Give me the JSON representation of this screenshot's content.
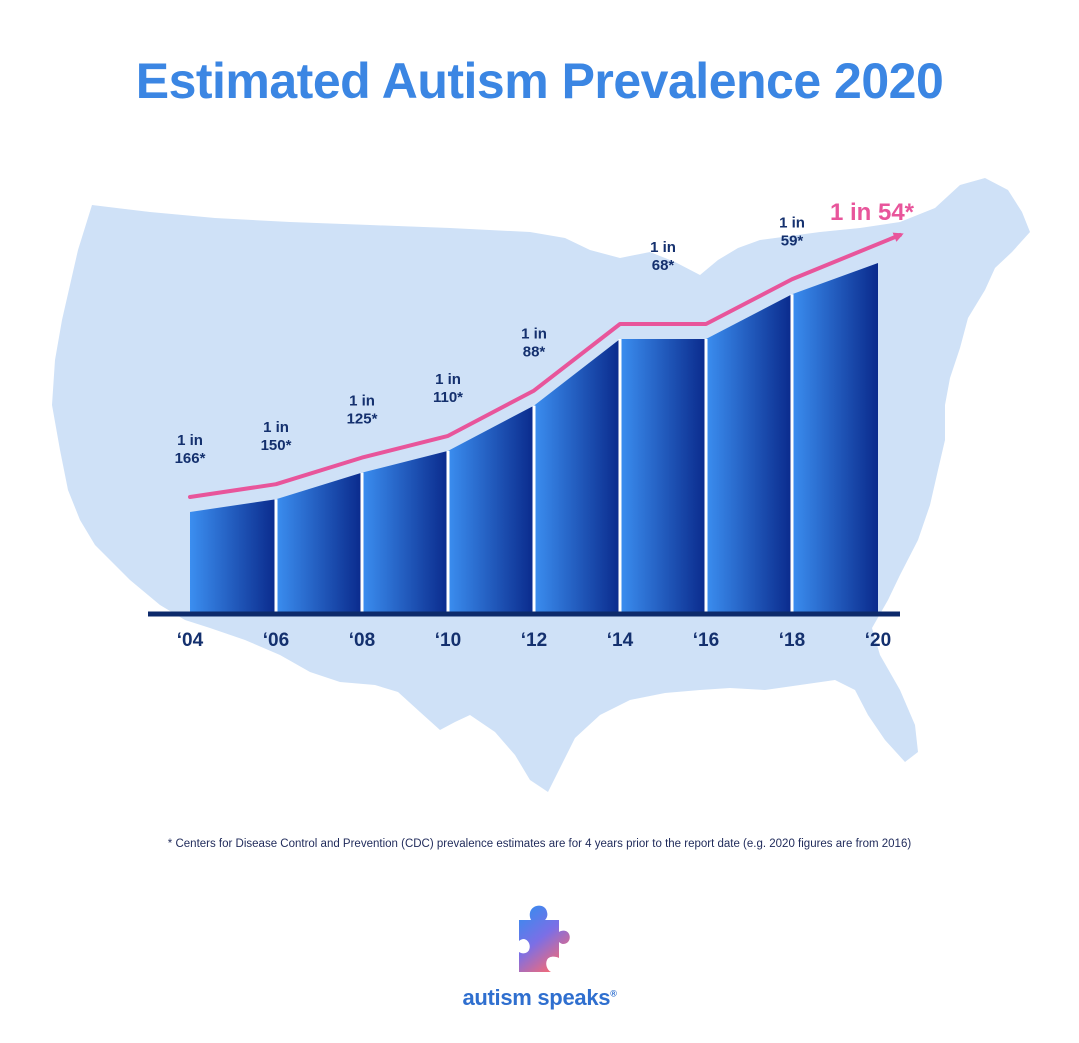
{
  "title": "Estimated Autism Prevalence 2020",
  "chart_data": {
    "type": "area",
    "categories": [
      "'04",
      "'06",
      "'08",
      "'10",
      "'12",
      "'14",
      "'16",
      "'18",
      "'20"
    ],
    "tick_labels": [
      "‘04",
      "‘06",
      "‘08",
      "‘10",
      "‘12",
      "‘14",
      "‘16",
      "‘18",
      "‘20"
    ],
    "values_one_in": [
      166,
      150,
      125,
      110,
      88,
      68,
      68,
      59,
      54
    ],
    "rate_labels": [
      [
        "1 in",
        "166*"
      ],
      [
        "1 in",
        "150*"
      ],
      [
        "1 in",
        "125*"
      ],
      [
        "1 in",
        "110*"
      ],
      [
        "1 in",
        "88*"
      ],
      [
        "1 in",
        "68*"
      ],
      [
        "1 in",
        "59*"
      ]
    ],
    "highlight_label": "1 in 54*",
    "xlabel": "",
    "ylabel": "",
    "grid": false,
    "background": "map of the United States",
    "colors": {
      "bar_light": "#3b8ef0",
      "bar_dark": "#0a2a8c",
      "trend_line": "#e8559b",
      "highlight_text": "#e8559b",
      "axis": "#0d2a6b",
      "label_text": "#14306e",
      "map": "#cfe1f7"
    }
  },
  "footnote": "* Centers for Disease Control and Prevention (CDC) prevalence estimates are for 4 years prior to the report date (e.g. 2020 figures are from 2016)",
  "brand": {
    "name": "autism speaks",
    "trademark": "®",
    "icon": "puzzle-piece-icon"
  }
}
